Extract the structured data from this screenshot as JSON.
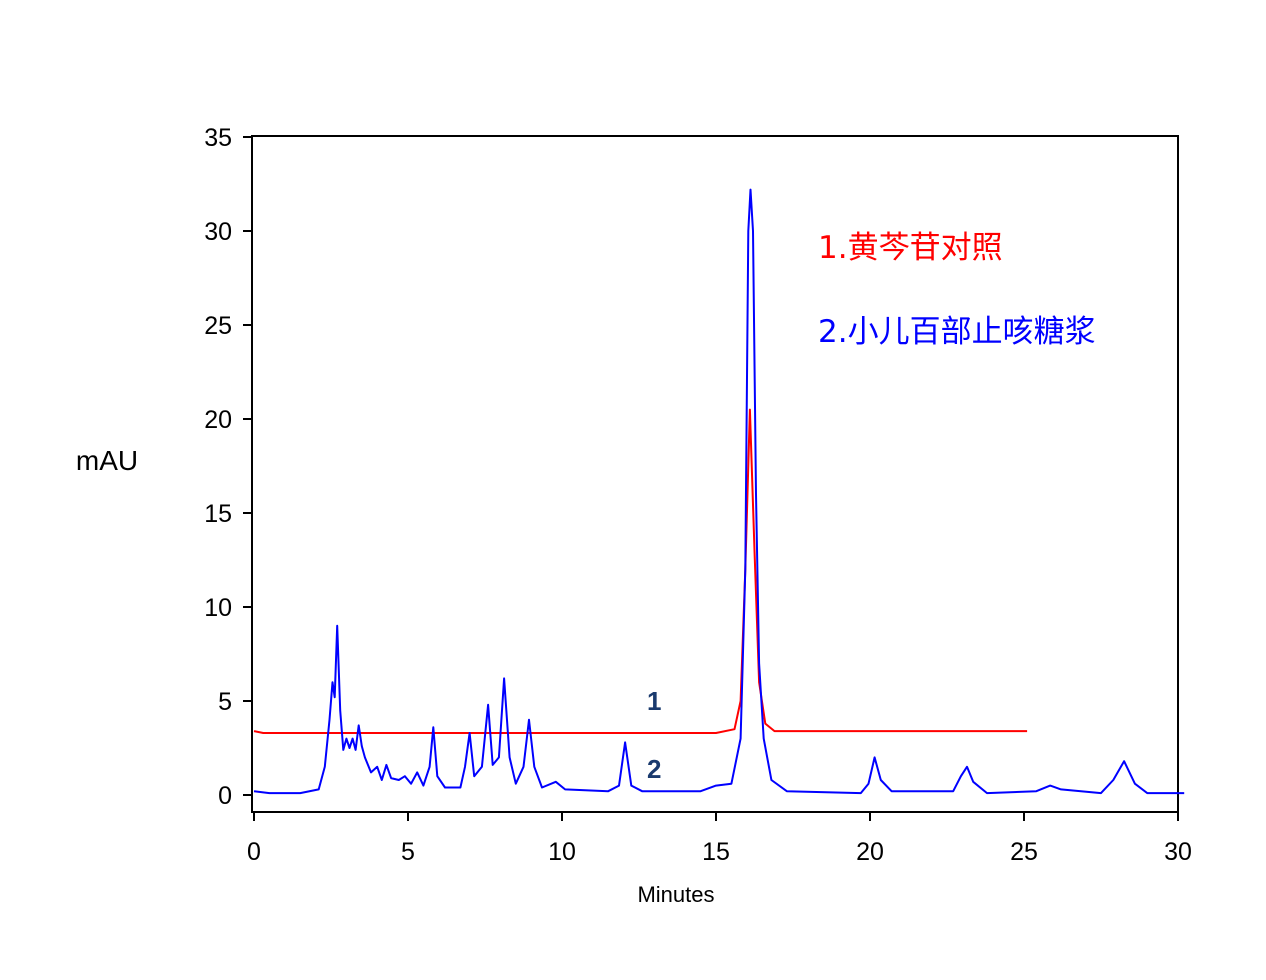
{
  "chart_data": {
    "type": "line",
    "title": "",
    "xlabel": "Minutes",
    "ylabel": "mAU",
    "xlim": [
      0,
      30
    ],
    "ylim": [
      -1,
      35
    ],
    "x_ticks": [
      "0",
      "5",
      "10",
      "15",
      "20",
      "25",
      "30"
    ],
    "y_ticks": [
      "0",
      "5",
      "10",
      "15",
      "20",
      "25",
      "30",
      "35"
    ],
    "grid": false,
    "legend_position": "top-right",
    "curve_labels": [
      "1",
      "2"
    ],
    "series": [
      {
        "name": "1.黄芩苷对照",
        "color": "#ff0000",
        "points": [
          [
            0,
            3.4
          ],
          [
            0.3,
            3.3
          ],
          [
            5,
            3.3
          ],
          [
            10,
            3.3
          ],
          [
            15,
            3.3
          ],
          [
            15.6,
            3.5
          ],
          [
            15.8,
            5.0
          ],
          [
            15.95,
            12.0
          ],
          [
            16.1,
            20.5
          ],
          [
            16.25,
            13.0
          ],
          [
            16.4,
            6.0
          ],
          [
            16.6,
            3.8
          ],
          [
            16.9,
            3.4
          ],
          [
            20,
            3.4
          ],
          [
            25,
            3.4
          ],
          [
            25.1,
            3.4
          ]
        ]
      },
      {
        "name": "2.小儿百部止咳糖浆",
        "color": "#0000ff",
        "points": [
          [
            0,
            0.2
          ],
          [
            0.5,
            0.1
          ],
          [
            1.5,
            0.1
          ],
          [
            2.1,
            0.3
          ],
          [
            2.3,
            1.5
          ],
          [
            2.45,
            4.0
          ],
          [
            2.55,
            6.0
          ],
          [
            2.62,
            5.2
          ],
          [
            2.7,
            9.0
          ],
          [
            2.8,
            4.5
          ],
          [
            2.9,
            2.4
          ],
          [
            3.0,
            3.0
          ],
          [
            3.1,
            2.5
          ],
          [
            3.2,
            3.0
          ],
          [
            3.3,
            2.4
          ],
          [
            3.4,
            3.7
          ],
          [
            3.5,
            2.6
          ],
          [
            3.6,
            2.0
          ],
          [
            3.8,
            1.2
          ],
          [
            4.0,
            1.5
          ],
          [
            4.15,
            0.8
          ],
          [
            4.3,
            1.6
          ],
          [
            4.45,
            0.9
          ],
          [
            4.7,
            0.8
          ],
          [
            4.9,
            1.0
          ],
          [
            5.1,
            0.6
          ],
          [
            5.3,
            1.2
          ],
          [
            5.5,
            0.5
          ],
          [
            5.7,
            1.5
          ],
          [
            5.82,
            3.6
          ],
          [
            5.95,
            1.0
          ],
          [
            6.2,
            0.4
          ],
          [
            6.7,
            0.4
          ],
          [
            6.85,
            1.5
          ],
          [
            7.0,
            3.3
          ],
          [
            7.15,
            1.0
          ],
          [
            7.4,
            1.5
          ],
          [
            7.6,
            4.8
          ],
          [
            7.75,
            1.6
          ],
          [
            7.95,
            2.0
          ],
          [
            8.12,
            6.2
          ],
          [
            8.3,
            2.0
          ],
          [
            8.5,
            0.6
          ],
          [
            8.75,
            1.5
          ],
          [
            8.93,
            4.0
          ],
          [
            9.1,
            1.5
          ],
          [
            9.35,
            0.4
          ],
          [
            9.8,
            0.7
          ],
          [
            10.1,
            0.3
          ],
          [
            11.5,
            0.2
          ],
          [
            11.85,
            0.5
          ],
          [
            12.05,
            2.8
          ],
          [
            12.25,
            0.5
          ],
          [
            12.6,
            0.2
          ],
          [
            14.5,
            0.2
          ],
          [
            15.0,
            0.5
          ],
          [
            15.5,
            0.6
          ],
          [
            15.8,
            3.0
          ],
          [
            15.95,
            12.0
          ],
          [
            16.05,
            30.0
          ],
          [
            16.12,
            32.2
          ],
          [
            16.2,
            30.0
          ],
          [
            16.3,
            16.0
          ],
          [
            16.4,
            7.0
          ],
          [
            16.55,
            3.0
          ],
          [
            16.8,
            0.8
          ],
          [
            17.3,
            0.2
          ],
          [
            19.7,
            0.1
          ],
          [
            19.95,
            0.6
          ],
          [
            20.15,
            2.0
          ],
          [
            20.35,
            0.8
          ],
          [
            20.7,
            0.2
          ],
          [
            22.7,
            0.2
          ],
          [
            22.95,
            1.0
          ],
          [
            23.15,
            1.5
          ],
          [
            23.35,
            0.7
          ],
          [
            23.8,
            0.1
          ],
          [
            25.4,
            0.2
          ],
          [
            25.85,
            0.5
          ],
          [
            26.2,
            0.3
          ],
          [
            27.5,
            0.1
          ],
          [
            27.9,
            0.8
          ],
          [
            28.25,
            1.8
          ],
          [
            28.6,
            0.6
          ],
          [
            29.0,
            0.1
          ],
          [
            30.2,
            0.1
          ]
        ]
      }
    ]
  }
}
